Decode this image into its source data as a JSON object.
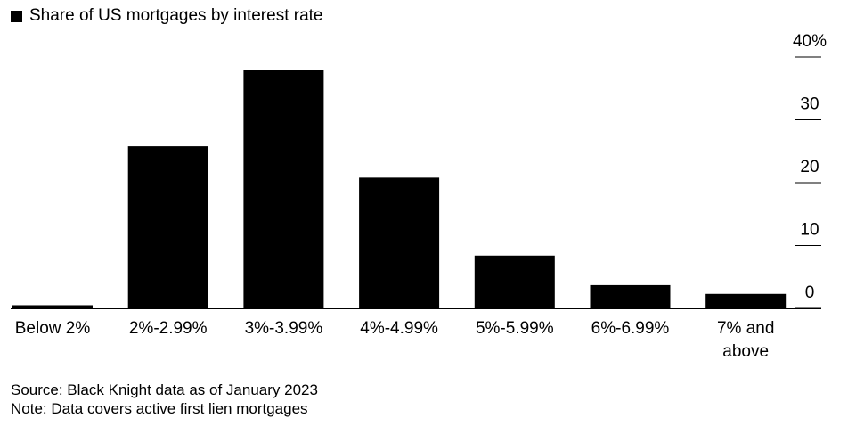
{
  "chart_data": {
    "type": "bar",
    "legend": "Share of US mortgages by interest rate",
    "categories": [
      "Below 2%",
      "2%-2.99%",
      "3%-3.99%",
      "4%-4.99%",
      "5%-5.99%",
      "6%-6.99%",
      "7% and above"
    ],
    "series": [
      {
        "name": "Share of US mortgages by interest rate",
        "values": [
          0.5,
          25.8,
          38.0,
          20.8,
          8.4,
          3.7,
          2.3
        ]
      }
    ],
    "ylim": [
      0,
      40
    ],
    "yticks": [
      0,
      10,
      20,
      30,
      40
    ],
    "ytick_labels": [
      "0",
      "10",
      "20",
      "30",
      "40%"
    ],
    "y_axis_position": "right",
    "grid": false,
    "legend_placement": "top-left",
    "color": "#000000"
  },
  "footer": {
    "source": "Source: Black Knight data as of January 2023",
    "note": "Note: Data covers active first lien mortgages"
  }
}
